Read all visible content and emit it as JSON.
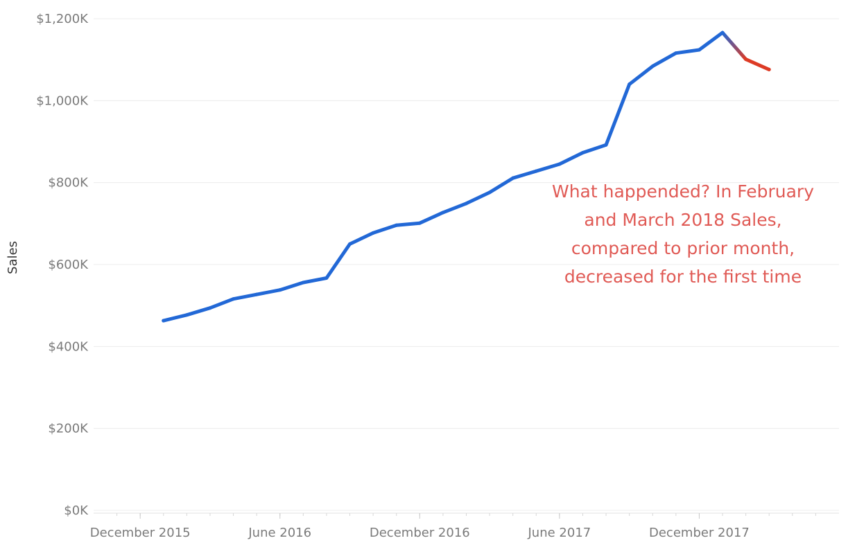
{
  "chart_data": {
    "type": "line",
    "ylabel": "Sales",
    "ylim": [
      0,
      1200000
    ],
    "y_ticks": [
      {
        "value": 0,
        "label": "$0K"
      },
      {
        "value": 200000,
        "label": "$200K"
      },
      {
        "value": 400000,
        "label": "$400K"
      },
      {
        "value": 600000,
        "label": "$600K"
      },
      {
        "value": 800000,
        "label": "$800K"
      },
      {
        "value": 1000000,
        "label": "$1,000K"
      },
      {
        "value": 1200000,
        "label": "$1,200K"
      }
    ],
    "x_range": [
      "2015-10",
      "2018-06"
    ],
    "x_labels": [
      {
        "date": "2015-12",
        "label": "December 2015"
      },
      {
        "date": "2016-06",
        "label": "June 2016"
      },
      {
        "date": "2016-12",
        "label": "December 2016"
      },
      {
        "date": "2017-06",
        "label": "June 2017"
      },
      {
        "date": "2017-12",
        "label": "December 2017"
      }
    ],
    "grid": true,
    "series": [
      {
        "color": "#2268d6",
        "highlight_color": "#dd3b25",
        "points": [
          {
            "x": "2016-01",
            "y": 463000
          },
          {
            "x": "2016-02",
            "y": 477000
          },
          {
            "x": "2016-03",
            "y": 494000
          },
          {
            "x": "2016-04",
            "y": 516000
          },
          {
            "x": "2016-05",
            "y": 527000
          },
          {
            "x": "2016-06",
            "y": 538000
          },
          {
            "x": "2016-07",
            "y": 556000
          },
          {
            "x": "2016-08",
            "y": 567000
          },
          {
            "x": "2016-09",
            "y": 650000
          },
          {
            "x": "2016-10",
            "y": 677000
          },
          {
            "x": "2016-11",
            "y": 696000
          },
          {
            "x": "2016-12",
            "y": 701000
          },
          {
            "x": "2017-01",
            "y": 727000
          },
          {
            "x": "2017-02",
            "y": 749000
          },
          {
            "x": "2017-03",
            "y": 776000
          },
          {
            "x": "2017-04",
            "y": 811000
          },
          {
            "x": "2017-05",
            "y": 828000
          },
          {
            "x": "2017-06",
            "y": 845000
          },
          {
            "x": "2017-07",
            "y": 873000
          },
          {
            "x": "2017-08",
            "y": 892000
          },
          {
            "x": "2017-09",
            "y": 1040000
          },
          {
            "x": "2017-10",
            "y": 1084000
          },
          {
            "x": "2017-11",
            "y": 1116000
          },
          {
            "x": "2017-12",
            "y": 1124000
          },
          {
            "x": "2018-01",
            "y": 1166000
          },
          {
            "x": "2018-02",
            "y": 1101000
          },
          {
            "x": "2018-03",
            "y": 1076000
          }
        ],
        "highlight_points": [
          "2018-02",
          "2018-03"
        ]
      }
    ],
    "annotation": {
      "lines": [
        "What happended? In February",
        "and March 2018 Sales,",
        "compared to prior month,",
        "decreased for the first time"
      ],
      "color": "#e05a55"
    }
  }
}
